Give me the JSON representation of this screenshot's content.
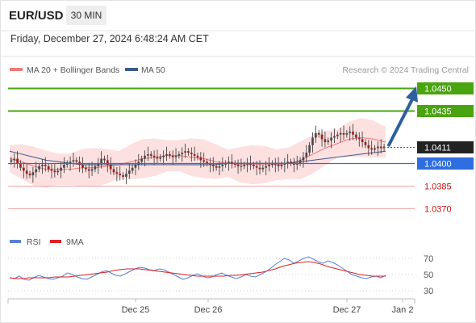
{
  "header": {
    "symbol": "EUR/USD",
    "timeframe": "30 MIN",
    "datetime": "Friday, December 27, 2024 6:48:24 AM CET"
  },
  "legend": {
    "ma20_label": "MA 20 + Bollinger Bands",
    "ma50_label": "MA 50",
    "credit": "Research © 2024 Trading Central",
    "rsi_label": "RSI",
    "rsi_ma_label": "9MA"
  },
  "colors": {
    "resistance": "#4aa410",
    "support": "#2e6ee0",
    "support_weak": "#cc1111",
    "current": "#222222",
    "arrow": "#2e5f9e",
    "bollinger_fill": "#fde0e0",
    "ma20": "#f07a7a",
    "ma50": "#3c5a8c",
    "rsi": "#5b7ed6",
    "rsi_ma": "#dd2222"
  },
  "chart_data": [
    {
      "type": "candlestick",
      "title": "",
      "x_labels": [
        "Dec 25",
        "Dec 26",
        "Dec 27",
        "Jan 2"
      ],
      "y_range": [
        1.0355,
        1.0458
      ],
      "series": [
        {
          "name": "MA 20 + Bollinger Bands"
        },
        {
          "name": "MA 50"
        }
      ],
      "candles_close": [
        1.0402,
        1.0403,
        1.04,
        1.0397,
        1.0395,
        1.0393,
        1.0392,
        1.0394,
        1.0396,
        1.0398,
        1.0399,
        1.0398,
        1.0396,
        1.0395,
        1.0394,
        1.0395,
        1.0397,
        1.0399,
        1.04,
        1.0401,
        1.0402,
        1.0401,
        1.0399,
        1.0397,
        1.0396,
        1.0395,
        1.0396,
        1.0398,
        1.04,
        1.0403,
        1.0402,
        1.0399,
        1.0396,
        1.0394,
        1.0393,
        1.0392,
        1.0391,
        1.0393,
        1.0395,
        1.0397,
        1.0399,
        1.0401,
        1.0403,
        1.0405,
        1.0406,
        1.0405,
        1.0404,
        1.0403,
        1.0404,
        1.0405,
        1.0406,
        1.0405,
        1.0404,
        1.0405,
        1.0406,
        1.0407,
        1.0408,
        1.0407,
        1.0406,
        1.0405,
        1.0404,
        1.0402,
        1.0401,
        1.04,
        1.0399,
        1.0398,
        1.0397,
        1.0398,
        1.0399,
        1.04,
        1.0401,
        1.04,
        1.0399,
        1.0398,
        1.0398,
        1.0399,
        1.04,
        1.0399,
        1.0398,
        1.0397,
        1.0396,
        1.0397,
        1.0398,
        1.0399,
        1.04,
        1.0399,
        1.0398,
        1.0399,
        1.04,
        1.0401,
        1.04,
        1.0399,
        1.04,
        1.0402,
        1.0404,
        1.0407,
        1.0412,
        1.0417,
        1.042,
        1.0419,
        1.0416,
        1.0414,
        1.0415,
        1.0417,
        1.0418,
        1.0419,
        1.042,
        1.0419,
        1.042,
        1.0421,
        1.0419,
        1.0417,
        1.0416,
        1.0414,
        1.0412,
        1.041,
        1.0409,
        1.041,
        1.0411,
        1.041,
        1.0411
      ],
      "ma50_approx": [
        1.0408,
        1.0406,
        1.0404,
        1.0402,
        1.0401,
        1.04,
        1.0399,
        1.0399,
        1.0399,
        1.0399,
        1.0399,
        1.0399,
        1.0399,
        1.0399,
        1.0399,
        1.0399,
        1.0399,
        1.0399,
        1.04,
        1.04,
        1.04,
        1.04,
        1.04,
        1.04,
        1.0401,
        1.0402,
        1.0403,
        1.0404,
        1.0405,
        1.0406,
        1.0407,
        1.0408
      ],
      "ma20_approx": [
        1.0403,
        1.0401,
        1.0398,
        1.0396,
        1.0396,
        1.0396,
        1.0397,
        1.0397,
        1.0398,
        1.0399,
        1.0401,
        1.0403,
        1.0404,
        1.0405,
        1.0405,
        1.0404,
        1.0403,
        1.0401,
        1.04,
        1.0399,
        1.0399,
        1.0399,
        1.0399,
        1.04,
        1.0402,
        1.0406,
        1.041,
        1.0413,
        1.0416,
        1.0417,
        1.0416,
        1.0414
      ],
      "levels": [
        {
          "label": "1.0450",
          "value": 1.045,
          "kind": "resistance"
        },
        {
          "label": "1.0435",
          "value": 1.0435,
          "kind": "resistance"
        },
        {
          "label": "1.0411",
          "value": 1.0411,
          "kind": "current"
        },
        {
          "label": "1.0400",
          "value": 1.04,
          "kind": "support"
        },
        {
          "label": "1.0385",
          "value": 1.0385,
          "kind": "support_weak"
        },
        {
          "label": "1.0370",
          "value": 1.037,
          "kind": "support_weak"
        }
      ],
      "legend_position": "top-left"
    },
    {
      "type": "line",
      "title": "",
      "y_ticks": [
        70,
        50,
        30
      ],
      "y_range": [
        22,
        78
      ],
      "series": [
        {
          "name": "RSI",
          "values": [
            46,
            45,
            48,
            44,
            43,
            46,
            49,
            47,
            45,
            44,
            46,
            48,
            52,
            50,
            47,
            45,
            44,
            47,
            50,
            53,
            55,
            52,
            49,
            48,
            51,
            54,
            57,
            59,
            58,
            56,
            55,
            57,
            56,
            53,
            50,
            47,
            44,
            46,
            49,
            51,
            48,
            46,
            47,
            50,
            52,
            49,
            47,
            45,
            47,
            50,
            48,
            47,
            50,
            53,
            57,
            62,
            66,
            70,
            68,
            64,
            67,
            70,
            72,
            69,
            66,
            64,
            67,
            65,
            62,
            58,
            54,
            50,
            48,
            46,
            45,
            47,
            48,
            46,
            49
          ]
        },
        {
          "name": "9MA",
          "values": [
            46,
            45,
            45,
            46,
            46,
            46,
            46,
            47,
            47,
            47,
            48,
            49,
            50,
            51,
            52,
            53,
            55,
            56,
            57,
            57,
            57,
            56,
            55,
            54,
            53,
            52,
            51,
            50,
            49,
            48,
            48,
            48,
            48,
            48,
            49,
            49,
            50,
            51,
            52,
            53,
            55,
            57,
            60,
            62,
            64,
            65,
            66,
            65,
            63,
            60,
            58,
            56,
            54,
            52,
            50,
            49,
            48,
            48,
            48
          ]
        }
      ],
      "legend_position": "top-left"
    }
  ]
}
